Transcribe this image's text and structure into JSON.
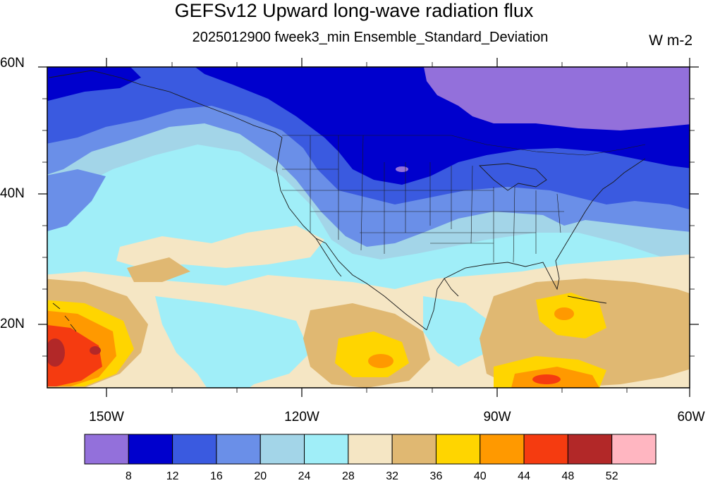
{
  "title": "GEFSv12 Upward long-wave radiation flux",
  "subtitle": "2025012900 fweek3_min Ensemble_Standard_Deviation",
  "units": "W m-2",
  "map": {
    "projection": "cylindrical equidistant",
    "lon_range": [
      -160,
      -60
    ],
    "lat_range": [
      10,
      60
    ],
    "lat_ticks": [
      "60N",
      "40N",
      "20N"
    ],
    "lon_ticks": [
      "150W",
      "120W",
      "90W",
      "60W"
    ],
    "boundaries": [
      "coastlines",
      "US states",
      "Canadian provinces"
    ]
  },
  "colorbar": {
    "colors": [
      "#9370db",
      "#0000cd",
      "#3a5ae0",
      "#6a8fe8",
      "#a3d5e8",
      "#a0eef8",
      "#f5e6c4",
      "#e0b872",
      "#ffd500",
      "#ff9900",
      "#f53b10",
      "#b22828",
      "#ffb6c1"
    ],
    "labels": [
      "8",
      "12",
      "16",
      "20",
      "24",
      "28",
      "32",
      "36",
      "40",
      "44",
      "48",
      "52"
    ]
  }
}
